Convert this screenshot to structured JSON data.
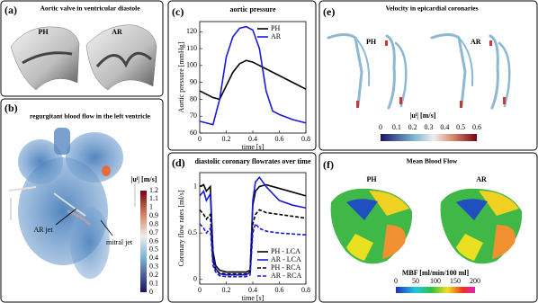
{
  "panels": {
    "a": {
      "label": "(a)",
      "title": "Aortic valve in ventricular diastole",
      "left": "PH",
      "right": "AR"
    },
    "b": {
      "label": "(b)",
      "title": "regurgitant blood flow in the left ventricle",
      "colorbar_label": "|uˡ| [m/s]",
      "colorbar_ticks": [
        0,
        0.1,
        0.2,
        0.3,
        0.4,
        0.5,
        0.6,
        0.7,
        0.8,
        0.9,
        1,
        1.1,
        1.2
      ],
      "annotation_1": "AR jet",
      "annotation_2": "mitral jet"
    },
    "c": {
      "label": "(c)"
    },
    "d": {
      "label": "(d)"
    },
    "e": {
      "label": "(e)",
      "title": "Velocity in epicardial coronaries",
      "left": "PH",
      "right": "AR",
      "colorbar_label": "|uˡ| [m/s]",
      "colorbar_ticks": [
        0,
        0.1,
        0.2,
        0.3,
        0.4,
        0.5,
        0.6
      ]
    },
    "f": {
      "label": "(f)",
      "title": "Mean Blood Flow",
      "left": "PH",
      "right": "AR",
      "colorbar_label": "MBF [ml/min/100 ml]",
      "colorbar_ticks": [
        0,
        50,
        100,
        150,
        200
      ]
    }
  },
  "chart_data": [
    {
      "type": "line",
      "title": "aortic pressure",
      "x_label": "time [s]",
      "y_label": "Aortic pressure [mmHg]",
      "xlim": [
        0,
        0.8
      ],
      "ylim": [
        60,
        126
      ],
      "xticks": [
        0,
        0.2,
        0.4,
        0.6,
        0.8
      ],
      "yticks": [
        60,
        70,
        80,
        90,
        100,
        110,
        120
      ],
      "legend": "upper right",
      "series": [
        {
          "name": "PH",
          "color": "#000000",
          "style": "solid",
          "x": [
            0,
            0.1,
            0.15,
            0.2,
            0.25,
            0.3,
            0.35,
            0.4,
            0.5,
            0.6,
            0.7,
            0.8
          ],
          "values": [
            85,
            81,
            80,
            88,
            96,
            101,
            103,
            102,
            98,
            94,
            90,
            86
          ]
        },
        {
          "name": "AR",
          "color": "#1a1adb",
          "style": "solid",
          "x": [
            0,
            0.05,
            0.1,
            0.15,
            0.2,
            0.25,
            0.3,
            0.35,
            0.4,
            0.45,
            0.5,
            0.55,
            0.6,
            0.7,
            0.8
          ],
          "values": [
            67,
            66,
            65,
            80,
            105,
            117,
            122,
            123,
            121,
            110,
            85,
            73,
            71,
            68,
            66
          ]
        }
      ]
    },
    {
      "type": "line",
      "title": "diastolic coronary flowrates over time",
      "x_label": "time [s]",
      "y_label": "Coronary flow rates [ml/s]",
      "xlim": [
        0,
        0.8
      ],
      "ylim": [
        -0.05,
        1.15
      ],
      "xticks": [
        0,
        0.2,
        0.4,
        0.6,
        0.8
      ],
      "yticks": [
        0,
        0.5,
        1
      ],
      "legend": "lower right",
      "series": [
        {
          "name": "PH - LCA",
          "color": "#000000",
          "style": "solid",
          "x": [
            0,
            0.03,
            0.05,
            0.08,
            0.1,
            0.12,
            0.15,
            0.2,
            0.25,
            0.3,
            0.35,
            0.38,
            0.4,
            0.42,
            0.45,
            0.5,
            0.6,
            0.7,
            0.8
          ],
          "values": [
            1.0,
            1.02,
            0.95,
            1.0,
            0.3,
            0.15,
            0.1,
            0.08,
            0.08,
            0.08,
            0.08,
            0.1,
            0.8,
            0.95,
            1.0,
            1.02,
            0.98,
            0.94,
            0.9
          ]
        },
        {
          "name": "AR - LCA",
          "color": "#1a1adb",
          "style": "solid",
          "x": [
            0,
            0.03,
            0.05,
            0.08,
            0.1,
            0.12,
            0.15,
            0.2,
            0.25,
            0.3,
            0.35,
            0.38,
            0.4,
            0.42,
            0.45,
            0.5,
            0.6,
            0.7,
            0.8
          ],
          "values": [
            0.9,
            0.95,
            0.85,
            0.92,
            0.25,
            0.12,
            0.06,
            0.05,
            0.05,
            0.05,
            0.05,
            0.08,
            0.85,
            1.05,
            1.1,
            1.0,
            0.85,
            0.8,
            0.77
          ]
        },
        {
          "name": "PH - RCA",
          "color": "#000000",
          "style": "dashed",
          "x": [
            0,
            0.03,
            0.05,
            0.08,
            0.1,
            0.12,
            0.15,
            0.2,
            0.25,
            0.3,
            0.35,
            0.38,
            0.4,
            0.42,
            0.45,
            0.5,
            0.6,
            0.7,
            0.8
          ],
          "values": [
            0.75,
            0.7,
            0.65,
            0.7,
            0.2,
            0.1,
            0.07,
            0.06,
            0.06,
            0.06,
            0.06,
            0.08,
            0.6,
            0.7,
            0.75,
            0.72,
            0.7,
            0.68,
            0.66
          ]
        },
        {
          "name": "AR - RCA",
          "color": "#1a1adb",
          "style": "dashed",
          "x": [
            0,
            0.03,
            0.05,
            0.08,
            0.1,
            0.12,
            0.15,
            0.2,
            0.25,
            0.3,
            0.35,
            0.38,
            0.4,
            0.42,
            0.45,
            0.5,
            0.6,
            0.7,
            0.8
          ],
          "values": [
            0.6,
            0.55,
            0.5,
            0.55,
            0.15,
            0.08,
            0.04,
            0.03,
            0.03,
            0.03,
            0.03,
            0.05,
            0.5,
            0.6,
            0.55,
            0.52,
            0.5,
            0.49,
            0.48
          ]
        }
      ]
    }
  ]
}
